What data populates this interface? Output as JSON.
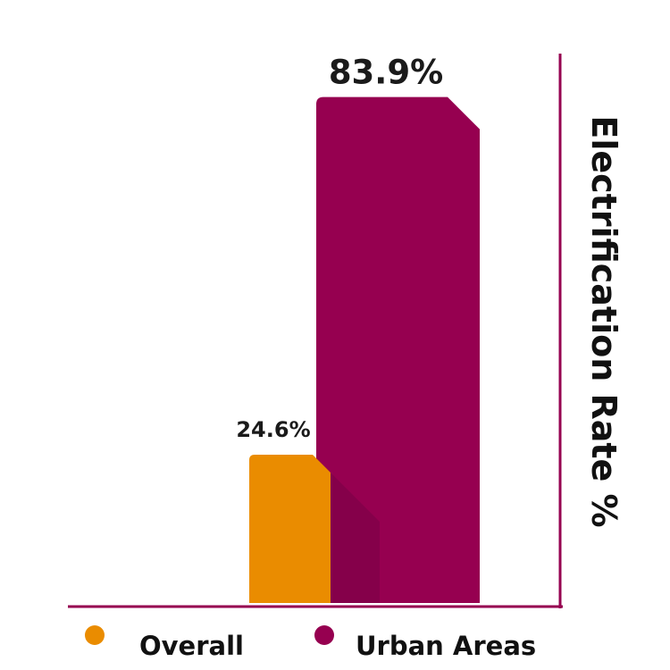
{
  "chart_data": {
    "type": "bar",
    "categories": [
      "Overall",
      "Urban Areas"
    ],
    "series": [
      {
        "name": "Overall",
        "values": [
          24.6,
          null
        ]
      },
      {
        "name": "Urban Areas",
        "values": [
          null,
          83.9
        ]
      }
    ],
    "values": [
      24.6,
      83.9
    ],
    "value_labels": [
      "24.6%",
      "83.9%"
    ],
    "ylabel": "Electrification Rate %",
    "ylabel_position": "right, vertical",
    "ylim": [
      0,
      100
    ],
    "grid": false,
    "legend": {
      "position": "bottom",
      "entries": [
        {
          "label": "Overall",
          "color": "#ea8c00"
        },
        {
          "label": "Urban Areas",
          "color": "#960050"
        }
      ]
    },
    "colors": {
      "overall": "#ea8c00",
      "urban": "#960050",
      "urban_shadow": "#85004a",
      "axis": "#960050"
    }
  }
}
